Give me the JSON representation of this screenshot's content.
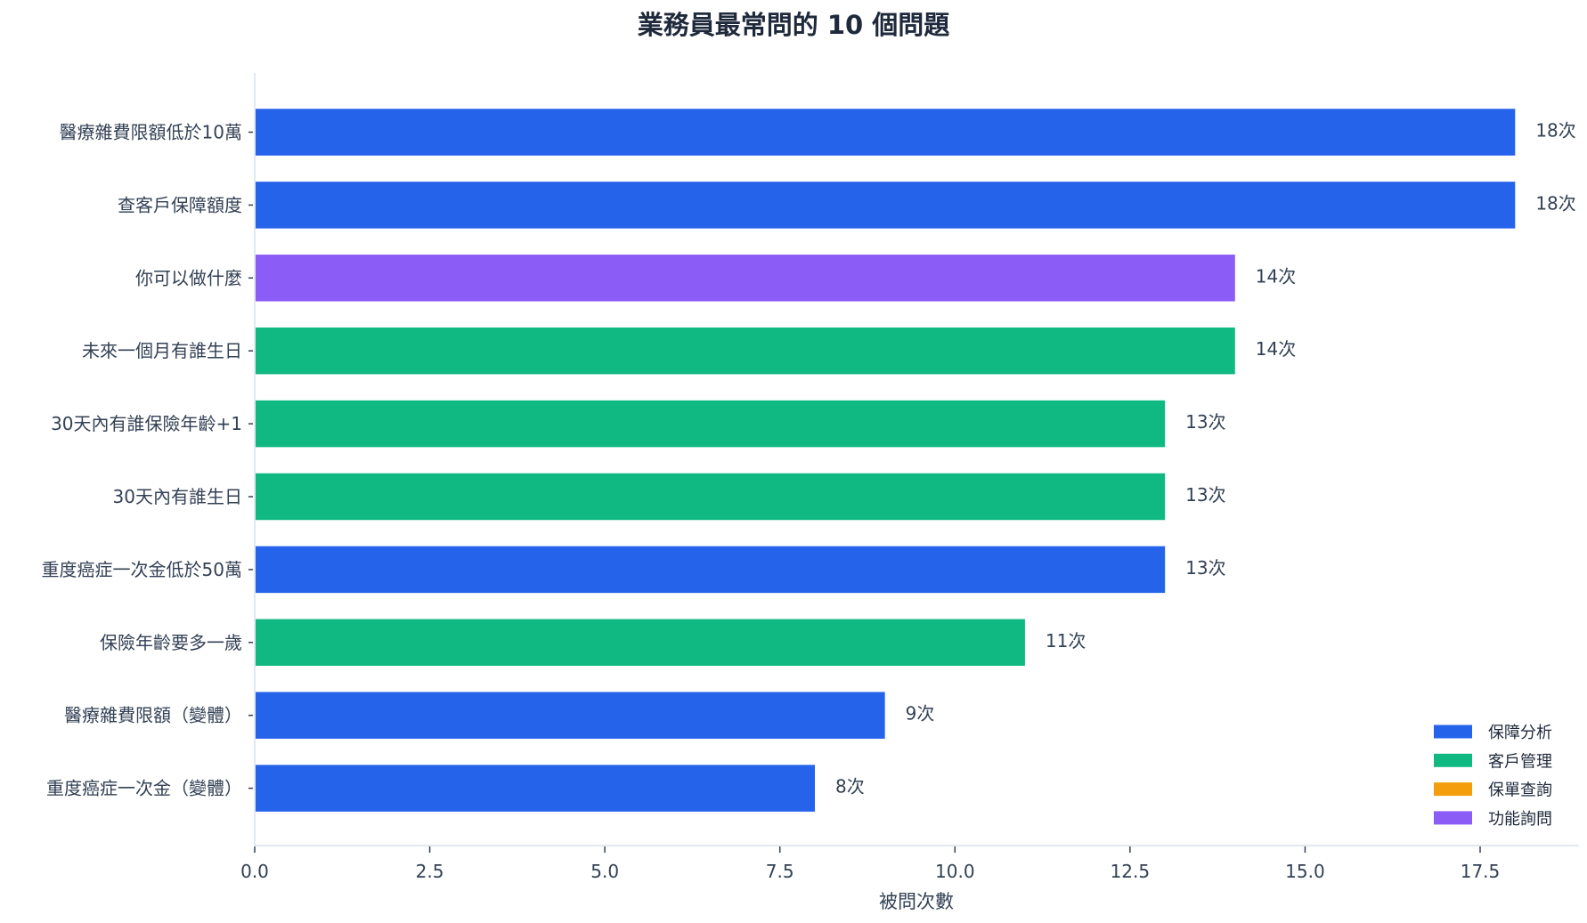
{
  "chart_data": {
    "type": "bar",
    "orientation": "horizontal",
    "title": "業務員最常問的 10 個問題",
    "xlabel": "被問次數",
    "ylabel": "",
    "xlim": [
      0,
      18.9
    ],
    "xticks": [
      "0.0",
      "2.5",
      "5.0",
      "7.5",
      "10.0",
      "12.5",
      "15.0",
      "17.5"
    ],
    "grid": false,
    "legend_position": "bottom-right",
    "legend": [
      {
        "label": "保障分析",
        "color": "#2563eb"
      },
      {
        "label": "客戶管理",
        "color": "#10b981"
      },
      {
        "label": "保單查詢",
        "color": "#f59e0b"
      },
      {
        "label": "功能詢問",
        "color": "#8b5cf6"
      }
    ],
    "bars": [
      {
        "category": "醫療雜費限額低於10萬",
        "value": 18,
        "label": "18次",
        "group": 0
      },
      {
        "category": "查客戶保障額度",
        "value": 18,
        "label": "18次",
        "group": 0
      },
      {
        "category": "你可以做什麼",
        "value": 14,
        "label": "14次",
        "group": 3
      },
      {
        "category": "未來一個月有誰生日",
        "value": 14,
        "label": "14次",
        "group": 1
      },
      {
        "category": "30天內有誰保險年齡+1",
        "value": 13,
        "label": "13次",
        "group": 1
      },
      {
        "category": "30天內有誰生日",
        "value": 13,
        "label": "13次",
        "group": 1
      },
      {
        "category": "重度癌症一次金低於50萬",
        "value": 13,
        "label": "13次",
        "group": 0
      },
      {
        "category": "保險年齡要多一歲",
        "value": 11,
        "label": "11次",
        "group": 1
      },
      {
        "category": "醫療雜費限額（變體）",
        "value": 9,
        "label": "9次",
        "group": 0
      },
      {
        "category": "重度癌症一次金（變體）",
        "value": 8,
        "label": "8次",
        "group": 0
      }
    ]
  }
}
